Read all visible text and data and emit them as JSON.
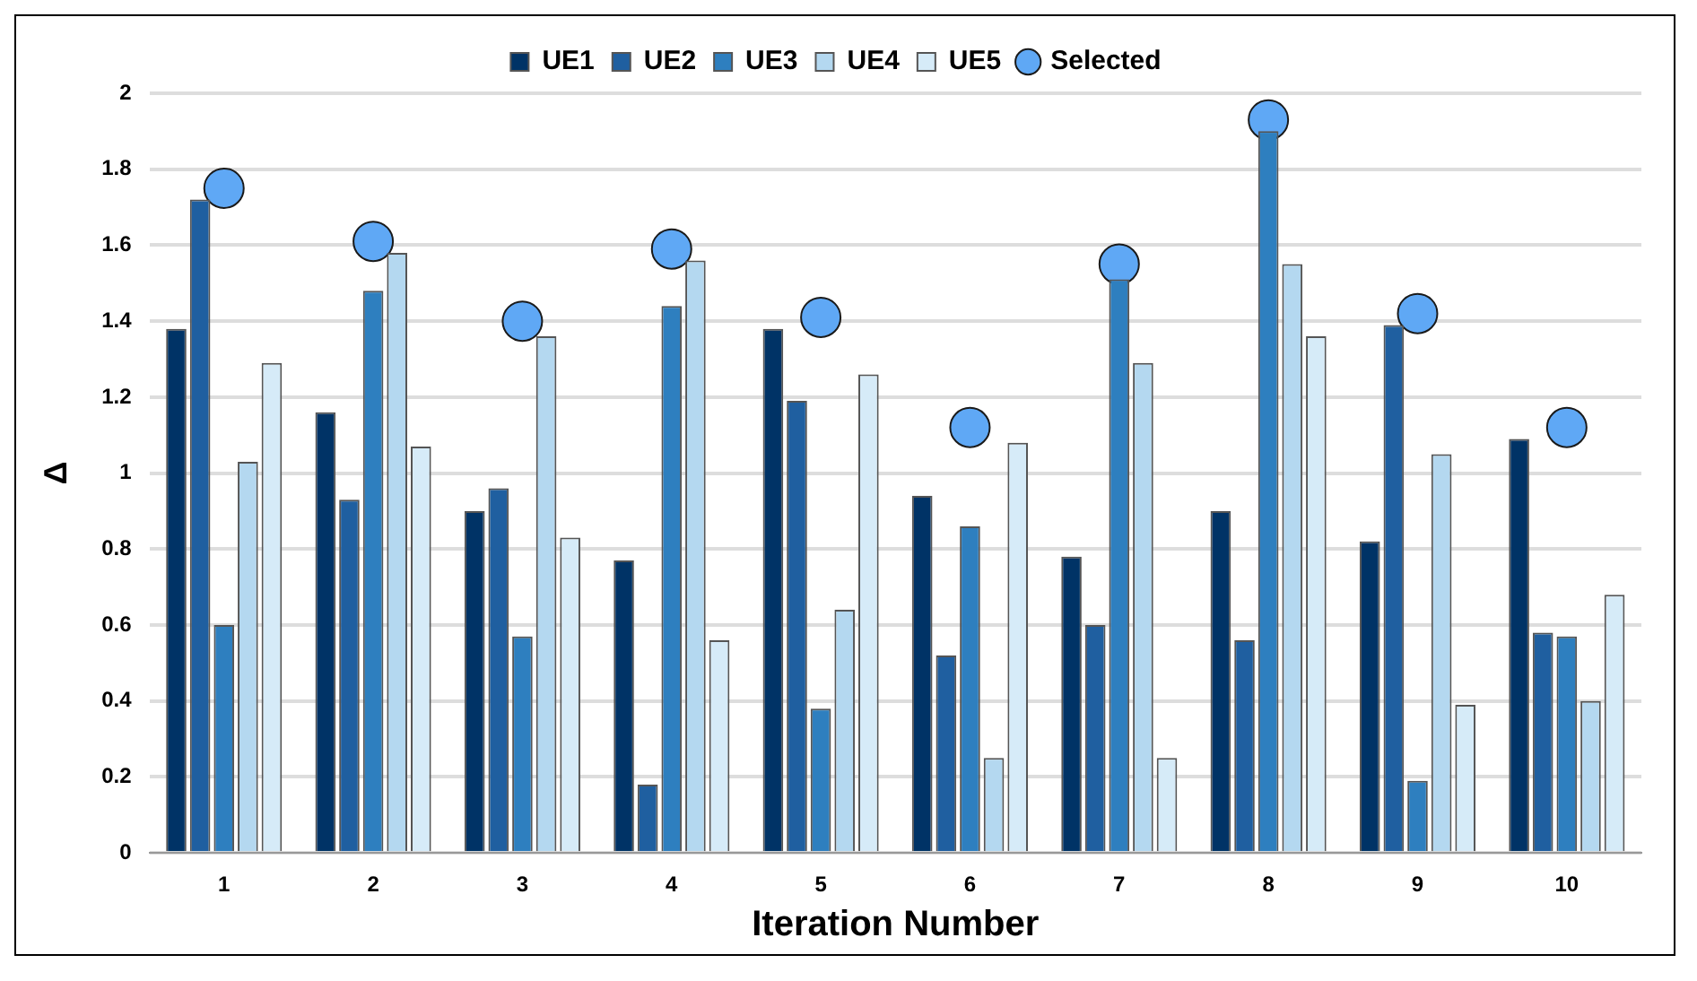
{
  "chart_data": {
    "type": "bar",
    "xlabel": "Iteration Number",
    "ylabel": "Δ",
    "categories": [
      "1",
      "2",
      "3",
      "4",
      "5",
      "6",
      "7",
      "8",
      "9",
      "10"
    ],
    "series": [
      {
        "name": "UE1",
        "color": "#003366",
        "values": [
          1.38,
          1.16,
          0.9,
          0.77,
          1.38,
          0.94,
          0.78,
          0.9,
          0.82,
          1.09
        ]
      },
      {
        "name": "UE2",
        "color": "#1f5fa0",
        "values": [
          1.72,
          0.93,
          0.96,
          0.18,
          1.19,
          0.52,
          0.6,
          0.56,
          1.39,
          0.58
        ]
      },
      {
        "name": "UE3",
        "color": "#2e7fbf",
        "values": [
          0.6,
          1.48,
          0.57,
          1.44,
          0.38,
          0.86,
          1.51,
          1.9,
          0.19,
          0.57
        ]
      },
      {
        "name": "UE4",
        "color": "#b4d8f0",
        "values": [
          1.03,
          1.58,
          1.36,
          1.56,
          0.64,
          0.25,
          1.29,
          1.55,
          1.05,
          0.4
        ]
      },
      {
        "name": "UE5",
        "color": "#d6ebf8",
        "values": [
          1.29,
          1.07,
          0.83,
          0.56,
          1.26,
          1.08,
          0.25,
          1.36,
          0.39,
          0.68
        ]
      },
      {
        "name": "Selected",
        "type": "scatter",
        "color": "#5fa8f5",
        "x": [
          "1",
          "2",
          "3",
          "4",
          "5",
          "6",
          "7",
          "8",
          "9",
          "10"
        ],
        "values": [
          1.75,
          1.61,
          1.4,
          1.59,
          1.41,
          1.12,
          1.55,
          1.93,
          1.42,
          1.12
        ]
      }
    ],
    "ylim": [
      0,
      2
    ],
    "yticks": [
      0,
      0.2,
      0.4,
      0.6,
      0.8,
      1,
      1.2,
      1.4,
      1.6,
      1.8,
      2
    ],
    "grid": "y",
    "legend": "top",
    "marker": "circle"
  }
}
